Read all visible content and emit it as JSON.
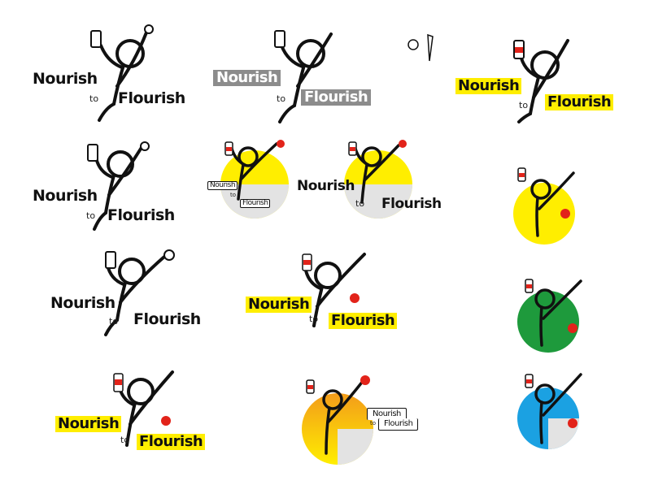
{
  "wordmark": {
    "word1": "Nourish",
    "word2": "to",
    "word3": "Flourish"
  },
  "colors": {
    "ink": "#111111",
    "yellow": "#ffee00",
    "red": "#e2231a",
    "gray": "#8c8c8c",
    "light_gray": "#e3e3e3",
    "green": "#1e9a3c",
    "blue": "#1ba1e2",
    "orange": "#f39c1a"
  },
  "icons": [
    "stick-figure-icon",
    "milk-bottle-icon",
    "apple-icon",
    "carrot-icon"
  ]
}
